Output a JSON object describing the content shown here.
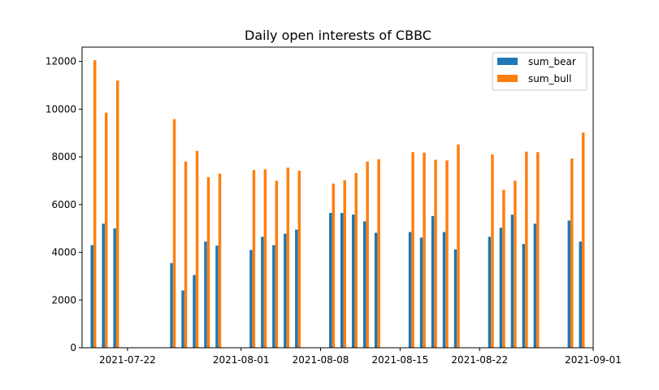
{
  "chart_data": {
    "type": "bar",
    "title": "Daily open interests of CBBC",
    "xlabel": "",
    "ylabel": "",
    "x_range": [
      "2021-07-18",
      "2021-09-01"
    ],
    "ylim": [
      0,
      12600
    ],
    "x_ticks": [
      "2021-07-22",
      "2021-08-01",
      "2021-08-08",
      "2021-08-15",
      "2021-08-22",
      "2021-09-01"
    ],
    "y_ticks": [
      0,
      2000,
      4000,
      6000,
      8000,
      10000,
      12000
    ],
    "grid": false,
    "legend_position": "top-right",
    "dates": [
      "2021-07-19",
      "2021-07-20",
      "2021-07-21",
      "2021-07-22",
      "2021-07-26",
      "2021-07-27",
      "2021-07-28",
      "2021-07-29",
      "2021-07-30",
      "2021-08-02",
      "2021-08-03",
      "2021-08-04",
      "2021-08-05",
      "2021-08-06",
      "2021-08-09",
      "2021-08-10",
      "2021-08-11",
      "2021-08-12",
      "2021-08-13",
      "2021-08-16",
      "2021-08-17",
      "2021-08-18",
      "2021-08-19",
      "2021-08-20",
      "2021-08-23",
      "2021-08-24",
      "2021-08-25",
      "2021-08-26",
      "2021-08-27",
      "2021-08-30",
      "2021-08-31"
    ],
    "series": [
      {
        "name": "sum_bear",
        "color": "#1f77b4",
        "values": [
          4300,
          5200,
          5000,
          null,
          3550,
          2400,
          3050,
          4450,
          4280,
          4100,
          4650,
          4300,
          4780,
          4950,
          5650,
          5650,
          5580,
          5300,
          4820,
          4850,
          4620,
          5520,
          4850,
          4120,
          4650,
          5030,
          5580,
          4350,
          5200,
          5330,
          4450
        ]
      },
      {
        "name": "sum_bull",
        "color": "#ff7f0e",
        "values": [
          12050,
          9850,
          11200,
          null,
          9580,
          7800,
          8250,
          7150,
          7300,
          7450,
          7480,
          7000,
          7550,
          7420,
          6880,
          7020,
          7320,
          7800,
          7900,
          8200,
          8180,
          7880,
          7850,
          8520,
          8100,
          6620,
          7000,
          8220,
          8200,
          7930,
          9020
        ]
      }
    ]
  }
}
